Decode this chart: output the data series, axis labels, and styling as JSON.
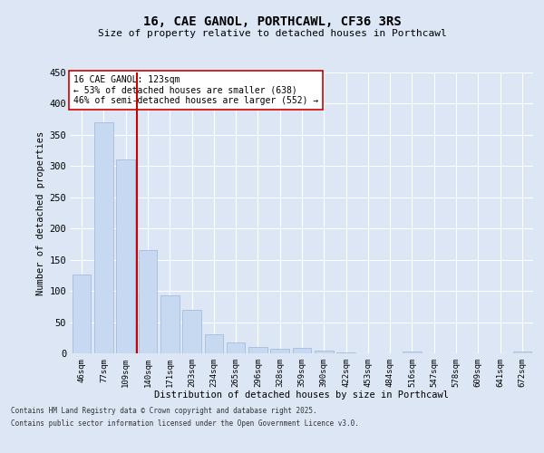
{
  "title_line1": "16, CAE GANOL, PORTHCAWL, CF36 3RS",
  "title_line2": "Size of property relative to detached houses in Porthcawl",
  "xlabel": "Distribution of detached houses by size in Porthcawl",
  "ylabel": "Number of detached properties",
  "categories": [
    "46sqm",
    "77sqm",
    "109sqm",
    "140sqm",
    "171sqm",
    "203sqm",
    "234sqm",
    "265sqm",
    "296sqm",
    "328sqm",
    "359sqm",
    "390sqm",
    "422sqm",
    "453sqm",
    "484sqm",
    "516sqm",
    "547sqm",
    "578sqm",
    "609sqm",
    "641sqm",
    "672sqm"
  ],
  "values": [
    127,
    370,
    310,
    165,
    93,
    70,
    30,
    18,
    10,
    7,
    9,
    4,
    2,
    0,
    0,
    3,
    0,
    0,
    0,
    0,
    3
  ],
  "bar_color": "#c6d9f1",
  "bar_edge_color": "#9ab5d9",
  "vline_x": 2.5,
  "vline_color": "#cc0000",
  "annotation_text": "16 CAE GANOL: 123sqm\n← 53% of detached houses are smaller (638)\n46% of semi-detached houses are larger (552) →",
  "annotation_box_color": "#ffffff",
  "annotation_box_edge": "#cc0000",
  "ylim": [
    0,
    450
  ],
  "yticks": [
    0,
    50,
    100,
    150,
    200,
    250,
    300,
    350,
    400,
    450
  ],
  "background_color": "#dce6f5",
  "grid_color": "#ffffff",
  "footer_line1": "Contains HM Land Registry data © Crown copyright and database right 2025.",
  "footer_line2": "Contains public sector information licensed under the Open Government Licence v3.0."
}
